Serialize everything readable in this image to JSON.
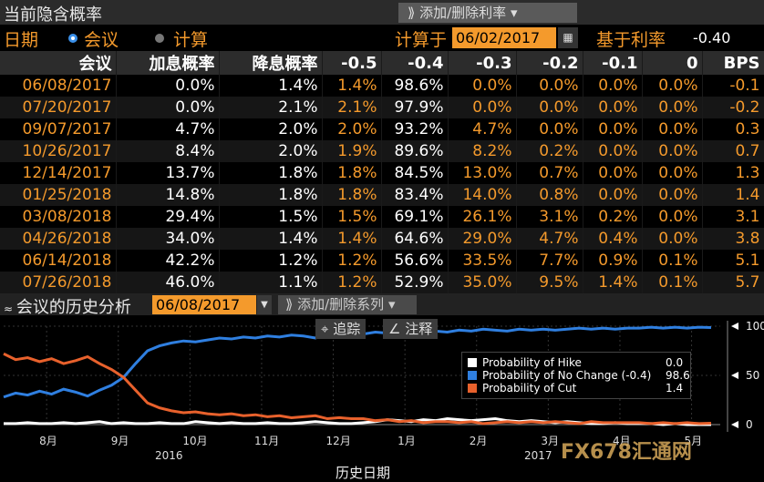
{
  "window": {
    "title": "当前隐含概率",
    "add_remove_rates": "添加/删除利率"
  },
  "controls": {
    "view_label": "日期",
    "radio_meeting": "会议",
    "radio_calc": "计算",
    "calc_label": "计算于",
    "calc_date": "06/02/2017",
    "base_rate_label": "基于利率",
    "base_rate_value": "-0.40"
  },
  "table": {
    "headers": [
      "会议",
      "加息概率",
      "降息概率",
      "-0.5",
      "-0.4",
      "-0.3",
      "-0.2",
      "-0.1",
      "0",
      "BPS"
    ],
    "rows": [
      [
        "06/08/2017",
        "0.0%",
        "1.4%",
        "1.4%",
        "98.6%",
        "0.0%",
        "0.0%",
        "0.0%",
        "0.0%",
        "-0.1"
      ],
      [
        "07/20/2017",
        "0.0%",
        "2.1%",
        "2.1%",
        "97.9%",
        "0.0%",
        "0.0%",
        "0.0%",
        "0.0%",
        "-0.2"
      ],
      [
        "09/07/2017",
        "4.7%",
        "2.0%",
        "2.0%",
        "93.2%",
        "4.7%",
        "0.0%",
        "0.0%",
        "0.0%",
        "0.3"
      ],
      [
        "10/26/2017",
        "8.4%",
        "2.0%",
        "1.9%",
        "89.6%",
        "8.2%",
        "0.2%",
        "0.0%",
        "0.0%",
        "0.7"
      ],
      [
        "12/14/2017",
        "13.7%",
        "1.8%",
        "1.8%",
        "84.5%",
        "13.0%",
        "0.7%",
        "0.0%",
        "0.0%",
        "1.3"
      ],
      [
        "01/25/2018",
        "14.8%",
        "1.8%",
        "1.8%",
        "83.4%",
        "14.0%",
        "0.8%",
        "0.0%",
        "0.0%",
        "1.4"
      ],
      [
        "03/08/2018",
        "29.4%",
        "1.5%",
        "1.5%",
        "69.1%",
        "26.1%",
        "3.1%",
        "0.2%",
        "0.0%",
        "3.1"
      ],
      [
        "04/26/2018",
        "34.0%",
        "1.4%",
        "1.4%",
        "64.6%",
        "29.0%",
        "4.7%",
        "0.4%",
        "0.0%",
        "3.8"
      ],
      [
        "06/14/2018",
        "42.2%",
        "1.2%",
        "1.2%",
        "56.6%",
        "33.5%",
        "7.7%",
        "0.9%",
        "0.1%",
        "5.1"
      ],
      [
        "07/26/2018",
        "46.0%",
        "1.1%",
        "1.2%",
        "52.9%",
        "35.0%",
        "9.5%",
        "1.4%",
        "0.1%",
        "5.7"
      ]
    ]
  },
  "history": {
    "title": "会议的历史分析",
    "meeting_date": "06/08/2017",
    "add_remove_series": "添加/删除系列",
    "track_label": "追踪",
    "annotate_label": "注释",
    "xaxis_title": "历史日期"
  },
  "chart_data": {
    "type": "line",
    "x_month_labels": [
      "8月",
      "9月",
      "10月",
      "11月",
      "12月",
      "1月",
      "2月",
      "3月",
      "4月",
      "5月"
    ],
    "x_year_labels": [
      "2016",
      "2017"
    ],
    "ylim": [
      0,
      100
    ],
    "yticks": [
      0,
      50,
      100
    ],
    "legend_placement": "top-right",
    "series": [
      {
        "name": "Probability of Hike",
        "legend_value": "0.0",
        "color": "#ffffff",
        "values": [
          1,
          1,
          2,
          1,
          1,
          2,
          1,
          2,
          3,
          1,
          2,
          1,
          1,
          2,
          1,
          1,
          3,
          2,
          1,
          2,
          1,
          1,
          2,
          1,
          1,
          2,
          3,
          2,
          1,
          1,
          2,
          3,
          5,
          4,
          3,
          5,
          4,
          6,
          5,
          4,
          5,
          6,
          4,
          3,
          4,
          3,
          2,
          3,
          2,
          1,
          1,
          2,
          1,
          1,
          1,
          0,
          1,
          0,
          0,
          0
        ]
      },
      {
        "name": "Probability of No Change (-0.4)",
        "legend_value": "98.6",
        "color": "#2f7fe0",
        "values": [
          28,
          32,
          30,
          34,
          31,
          36,
          33,
          29,
          35,
          40,
          48,
          62,
          75,
          80,
          83,
          85,
          84,
          86,
          88,
          87,
          89,
          88,
          90,
          89,
          91,
          90,
          88,
          92,
          91,
          93,
          92,
          94,
          93,
          95,
          94,
          96,
          95,
          94,
          96,
          95,
          97,
          96,
          95,
          97,
          96,
          97,
          96,
          97,
          98,
          97,
          98,
          97,
          98,
          98,
          99,
          98,
          99,
          98,
          99,
          98.6
        ]
      },
      {
        "name": "Probability of Cut",
        "legend_value": "1.4",
        "color": "#e8612c",
        "values": [
          72,
          66,
          68,
          64,
          67,
          62,
          65,
          69,
          62,
          56,
          48,
          35,
          22,
          17,
          14,
          12,
          13,
          11,
          10,
          11,
          9,
          10,
          8,
          9,
          7,
          8,
          9,
          6,
          7,
          6,
          6,
          4,
          5,
          3,
          4,
          2,
          3,
          3,
          2,
          3,
          1,
          2,
          3,
          2,
          3,
          2,
          3,
          2,
          1,
          3,
          2,
          2,
          2,
          2,
          1,
          2,
          1,
          2,
          1,
          1.4
        ]
      }
    ]
  },
  "watermark": "FX678汇通网"
}
